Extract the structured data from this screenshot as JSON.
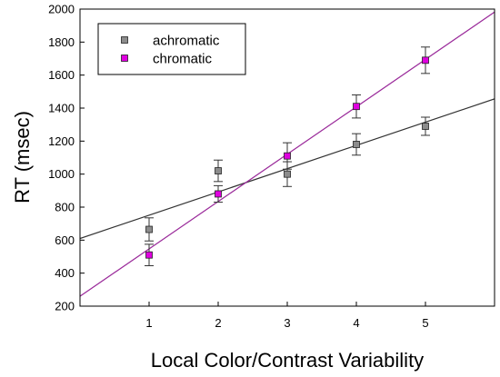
{
  "chart_data": {
    "type": "scatter",
    "title": "",
    "xlabel": "Local Color/Contrast Variability",
    "ylabel": "RT (msec)",
    "xlim": [
      0,
      6
    ],
    "ylim": [
      200,
      2000
    ],
    "x_ticks": [
      "1",
      "2",
      "3",
      "4",
      "5"
    ],
    "x_tick_values": [
      1,
      2,
      3,
      4,
      5
    ],
    "y_ticks": [
      "200",
      "400",
      "600",
      "800",
      "1000",
      "1200",
      "1400",
      "1600",
      "1800",
      "2000"
    ],
    "y_tick_values": [
      200,
      400,
      600,
      800,
      1000,
      1200,
      1400,
      1600,
      1800,
      2000
    ],
    "grid": false,
    "legend_position": "top-left",
    "series": [
      {
        "name": "achromatic",
        "color": "#8c8c8c",
        "line_color": "#333333",
        "x": [
          1,
          2,
          3,
          4,
          5
        ],
        "y": [
          665,
          1020,
          1000,
          1180,
          1290
        ],
        "error": [
          70,
          65,
          75,
          65,
          55
        ],
        "fit": {
          "intercept": 610,
          "slope": 141
        }
      },
      {
        "name": "chromatic",
        "color": "#e000e0",
        "line_color": "#9a2a9a",
        "x": [
          1,
          2,
          3,
          4,
          5
        ],
        "y": [
          510,
          880,
          1110,
          1410,
          1690
        ],
        "error": [
          65,
          50,
          80,
          70,
          80
        ],
        "fit": {
          "intercept": 260,
          "slope": 287
        }
      }
    ]
  }
}
